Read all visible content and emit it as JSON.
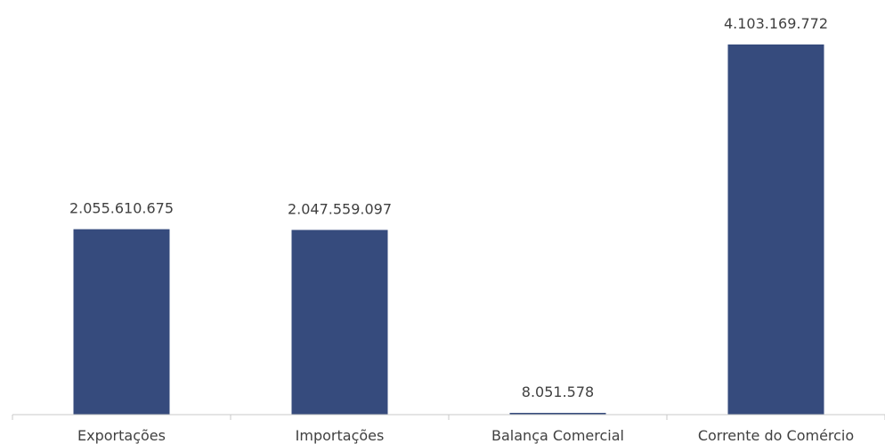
{
  "chart_data": {
    "type": "bar",
    "title": "",
    "xlabel": "",
    "ylabel": "",
    "categories": [
      "Exportações",
      "Importações",
      "Balança Comercial",
      "Corrente do Comércio"
    ],
    "values": [
      2055610675,
      2047559097,
      8051578,
      4103169772
    ],
    "data_labels": [
      "2.055.610.675",
      "2.047.559.097",
      "8.051.578",
      "4.103.169.772"
    ],
    "ylim": [
      0,
      4103169772
    ],
    "grid": false,
    "legend": "none",
    "bar_color": "#364b7d"
  }
}
